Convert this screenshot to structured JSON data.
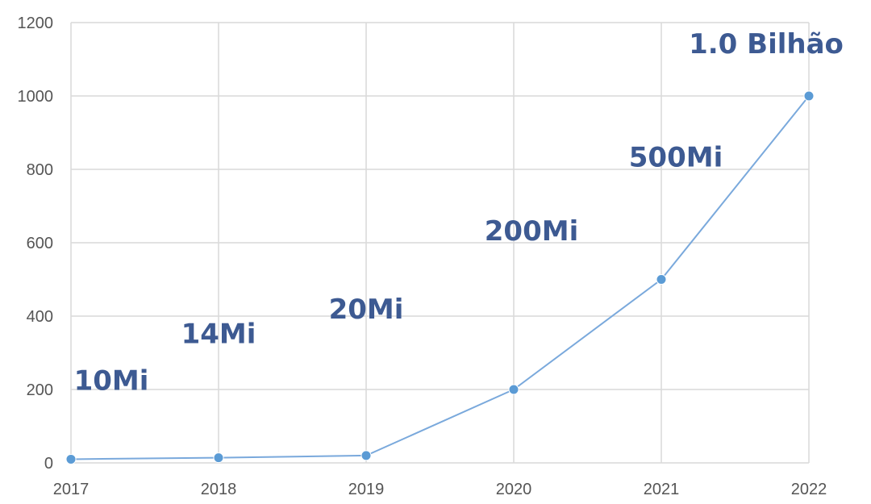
{
  "chart_data": {
    "type": "line",
    "x": [
      "2017",
      "2018",
      "2019",
      "2020",
      "2021",
      "2022"
    ],
    "values": [
      10,
      14,
      20,
      200,
      500,
      1000
    ],
    "data_labels": [
      "10Mi",
      "14Mi",
      "20Mi",
      "200Mi",
      "500Mi",
      "1.0 Bilhão"
    ],
    "ylim": [
      0,
      1200
    ],
    "yticks": [
      0,
      200,
      400,
      600,
      800,
      1000,
      1200
    ],
    "grid": true,
    "legend": "none",
    "colors": {
      "line": "#7aa9dc",
      "marker": "#5b9bd5",
      "label": "#3d5a92",
      "grid": "#d9d9d9"
    }
  }
}
